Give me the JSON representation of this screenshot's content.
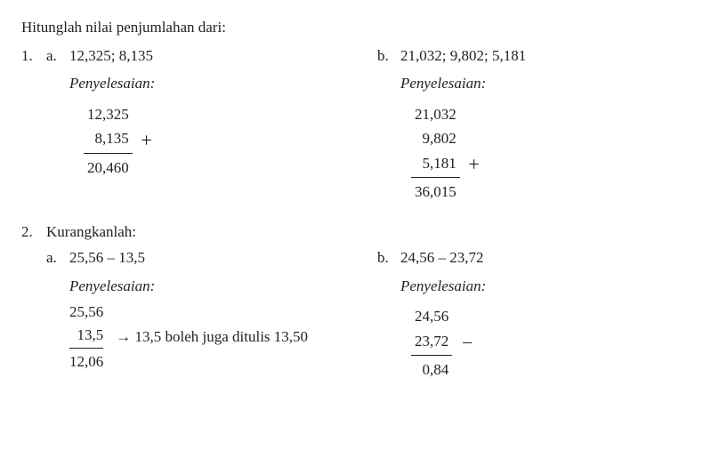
{
  "heading": "Hitunglah nilai penjumlahan dari:",
  "penyelesaian": "Penyelesaian:",
  "p1": {
    "num": "1.",
    "a": {
      "alpha": "a.",
      "given": "12,325; 8,135",
      "rows": [
        "12,325",
        "8,135"
      ],
      "op": "+",
      "result": "20,460"
    },
    "b": {
      "alpha": "b.",
      "given": "21,032; 9,802; 5,181",
      "rows": [
        "21,032",
        "9,802",
        "5,181"
      ],
      "op": "+",
      "result": "36,015"
    }
  },
  "p2": {
    "num": "2.",
    "title": "Kurangkanlah:",
    "a": {
      "alpha": "a.",
      "given": "25,56 – 13,5",
      "rows": [
        "25,56",
        "13,5"
      ],
      "op": "–",
      "result": "12,06",
      "note": "→ 13,5 boleh juga ditulis 13,50"
    },
    "b": {
      "alpha": "b.",
      "given": "24,56 – 23,72",
      "rows": [
        "24,56",
        "23,72"
      ],
      "op": "–",
      "result": "0,84"
    }
  },
  "style": {
    "font_family": "Times New Roman",
    "base_fontsize_pt": 13,
    "text_color": "#222222",
    "background": "#ffffff",
    "rule_color": "#222222"
  }
}
